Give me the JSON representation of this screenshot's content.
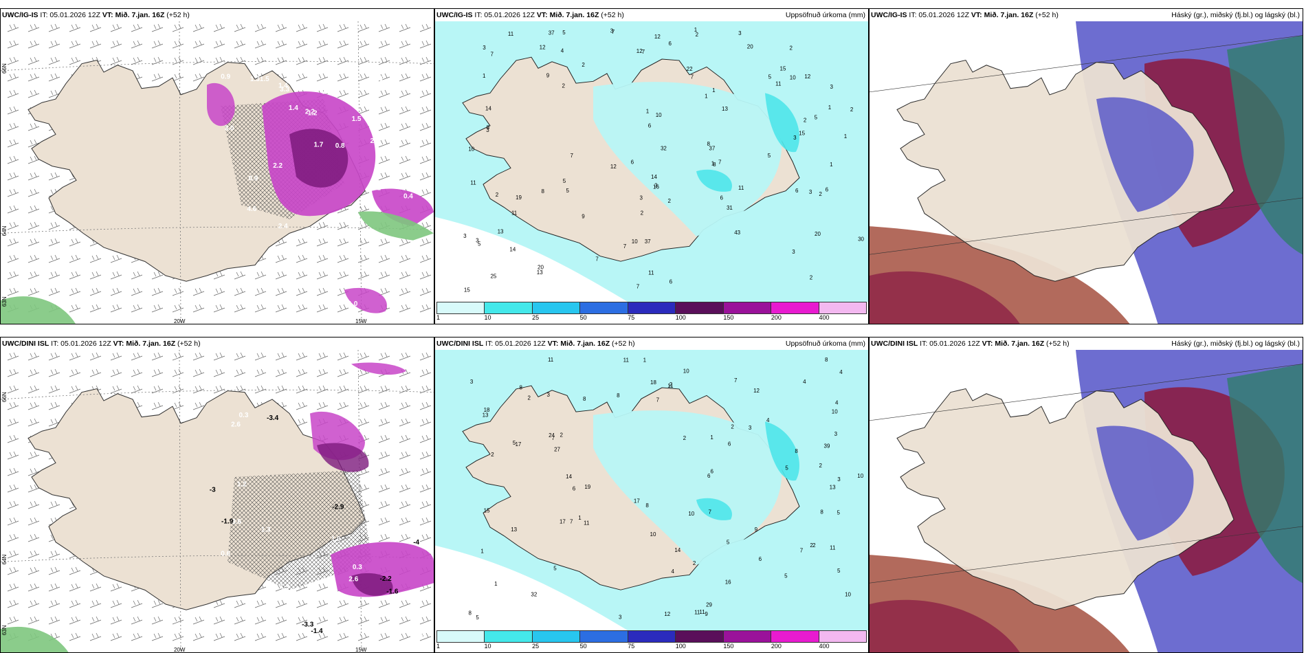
{
  "colors": {
    "land": "#ece1d3",
    "sea_white": "#ffffff",
    "precip_light": "#b8f6f6",
    "precip_mid": "#4fe6ea",
    "magenta": "#c845c8",
    "purple_dark": "#7d1a7d",
    "green": "#7ec77e",
    "cloud_blue": "#5353c8",
    "cloud_maroon": "#8a1d44",
    "cloud_teal": "#2f7d6c",
    "cloud_brown": "#a4503f"
  },
  "panels": [
    {
      "model": "UWC/IG-IS",
      "it_label": "IT: 05.01.2026 12Z",
      "vt_label": "VT: Mið. 7.jan. 16Z",
      "lead": "(+52 h)",
      "right_title": "",
      "lat_labels": [
        "66N",
        "64N",
        "63N"
      ],
      "lon_labels": [
        "20W",
        "15W"
      ],
      "values": [
        "0.9",
        "0.9",
        "0.4",
        "0.3",
        "2.4",
        "2.2",
        "4.0",
        "0.9",
        "1.31.5",
        "2.1",
        "1.4",
        "1.2",
        "2.6",
        "0.8",
        "1.8",
        "2.2",
        "1.0",
        "2.1",
        "2.7",
        "1.5",
        "3.0",
        "3.3",
        "4.6",
        "1.4",
        "1.0",
        "1.7",
        "0.9",
        "0.3",
        "1.7"
      ]
    },
    {
      "model": "UWC/IG-IS",
      "it_label": "IT: 05.01.2026 12Z",
      "vt_label": "VT: Mið. 7.jan. 16Z",
      "lead": "(+52 h)",
      "right_title": "Uppsöfnuð úrkoma (mm)",
      "values": [
        "1",
        "2",
        "2",
        "1",
        "3",
        "3",
        "3",
        "3",
        "1",
        "3",
        "3",
        "5",
        "5",
        "7",
        "5",
        "37",
        "15",
        "13",
        "22",
        "30",
        "37",
        "20",
        "15",
        "15",
        "12",
        "5",
        "3",
        "5",
        "4",
        "6",
        "6",
        "7",
        "11",
        "14",
        "10",
        "12",
        "11",
        "8",
        "7",
        "9",
        "11",
        "32",
        "43",
        "31",
        "37",
        "14",
        "12",
        "20",
        "25",
        "13",
        "19",
        "20",
        "10",
        "10",
        "9",
        "8",
        "11",
        "7",
        "8",
        "8",
        "7",
        "13",
        "2",
        "6",
        "2",
        "1",
        "1",
        "1",
        "2",
        "3",
        "1",
        "2",
        "2",
        "5",
        "2",
        "3",
        "7",
        "6",
        "7",
        "2",
        "1",
        "11",
        "10",
        "12",
        "16",
        "14",
        "11",
        "12",
        "6",
        "6",
        "7",
        "3",
        "7",
        "2",
        "2",
        "1",
        "6",
        "3",
        "3",
        "5"
      ],
      "colorbar_labels": [
        "1",
        "10",
        "25",
        "50",
        "75",
        "100",
        "150",
        "200",
        "400"
      ],
      "colorbar_colors": [
        "#d8fafa",
        "#44e8ea",
        "#28c6ef",
        "#2c6ee2",
        "#2b2bbd",
        "#5a0f5a",
        "#9a129a",
        "#e81bd0",
        "#f3b8f0"
      ]
    },
    {
      "model": "UWC/IG-IS",
      "it_label": "IT: 05.01.2026 12Z",
      "vt_label": "VT: Mið. 7.jan. 16Z",
      "lead": "(+52 h)",
      "right_title": "Háský (gr.), miðský (fj.bl.) og lágský (bl.)"
    },
    {
      "model": "UWC/DINI ISL",
      "it_label": "IT: 05.01.2026 12Z",
      "vt_label": "VT: Mið. 7.jan. 16Z",
      "lead": "(+52 h)",
      "right_title": "",
      "lat_labels": [
        "66N",
        "64N",
        "63N"
      ],
      "lon_labels": [
        "20W",
        "15W"
      ],
      "values": [
        "1.2",
        "0.6",
        "-2.2",
        "1.0",
        "0.5",
        "2.2",
        "3.6",
        "2.6",
        "-1.9",
        "-1.4",
        "-1.6",
        "-4",
        "-2.9",
        "0.4",
        "1.9",
        "1.2",
        "2.6",
        "3.6",
        "-3.4",
        "-3.3",
        "1.3",
        "0.3",
        "0.3",
        "-3",
        "0.6"
      ]
    },
    {
      "model": "UWC/DINI ISL",
      "it_label": "IT: 05.01.2026 12Z",
      "vt_label": "VT: Mið. 7.jan. 16Z",
      "lead": "(+52 h)",
      "right_title": "Uppsöfnuð úrkoma (mm)",
      "values": [
        "1",
        "2",
        "2",
        "1",
        "3",
        "1",
        "5",
        "5",
        "5",
        "5",
        "6",
        "6",
        "7",
        "7",
        "5",
        "4",
        "2",
        "4",
        "3",
        "11",
        "17",
        "11",
        "10",
        "24",
        "32",
        "27",
        "10",
        "17",
        "19",
        "18",
        "10",
        "29",
        "39",
        "13",
        "11",
        "17",
        "13",
        "11",
        "8",
        "14",
        "9",
        "10",
        "11",
        "7",
        "8",
        "6",
        "8",
        "15",
        "10",
        "9",
        "7",
        "8",
        "12",
        "18",
        "14",
        "13",
        "16",
        "11",
        "2",
        "7",
        "4",
        "3",
        "2",
        "5",
        "4",
        "1",
        "2",
        "6",
        "8",
        "10",
        "12",
        "11",
        "8",
        "3",
        "2",
        "1",
        "2",
        "5",
        "3",
        "2",
        "6",
        "5",
        "8",
        "8",
        "7",
        "4",
        "2",
        "3"
      ],
      "colorbar_labels": [
        "1",
        "10",
        "25",
        "50",
        "75",
        "100",
        "150",
        "200",
        "400"
      ],
      "colorbar_colors": [
        "#d8fafa",
        "#44e8ea",
        "#28c6ef",
        "#2c6ee2",
        "#2b2bbd",
        "#5a0f5a",
        "#9a129a",
        "#e81bd0",
        "#f3b8f0"
      ]
    },
    {
      "model": "UWC/DINI ISL",
      "it_label": "IT: 05.01.2026 12Z",
      "vt_label": "VT: Mið. 7.jan. 16Z",
      "lead": "(+52 h)",
      "right_title": "Háský (gr.), miðský (fj.bl.) og lágský (bl.)"
    }
  ]
}
